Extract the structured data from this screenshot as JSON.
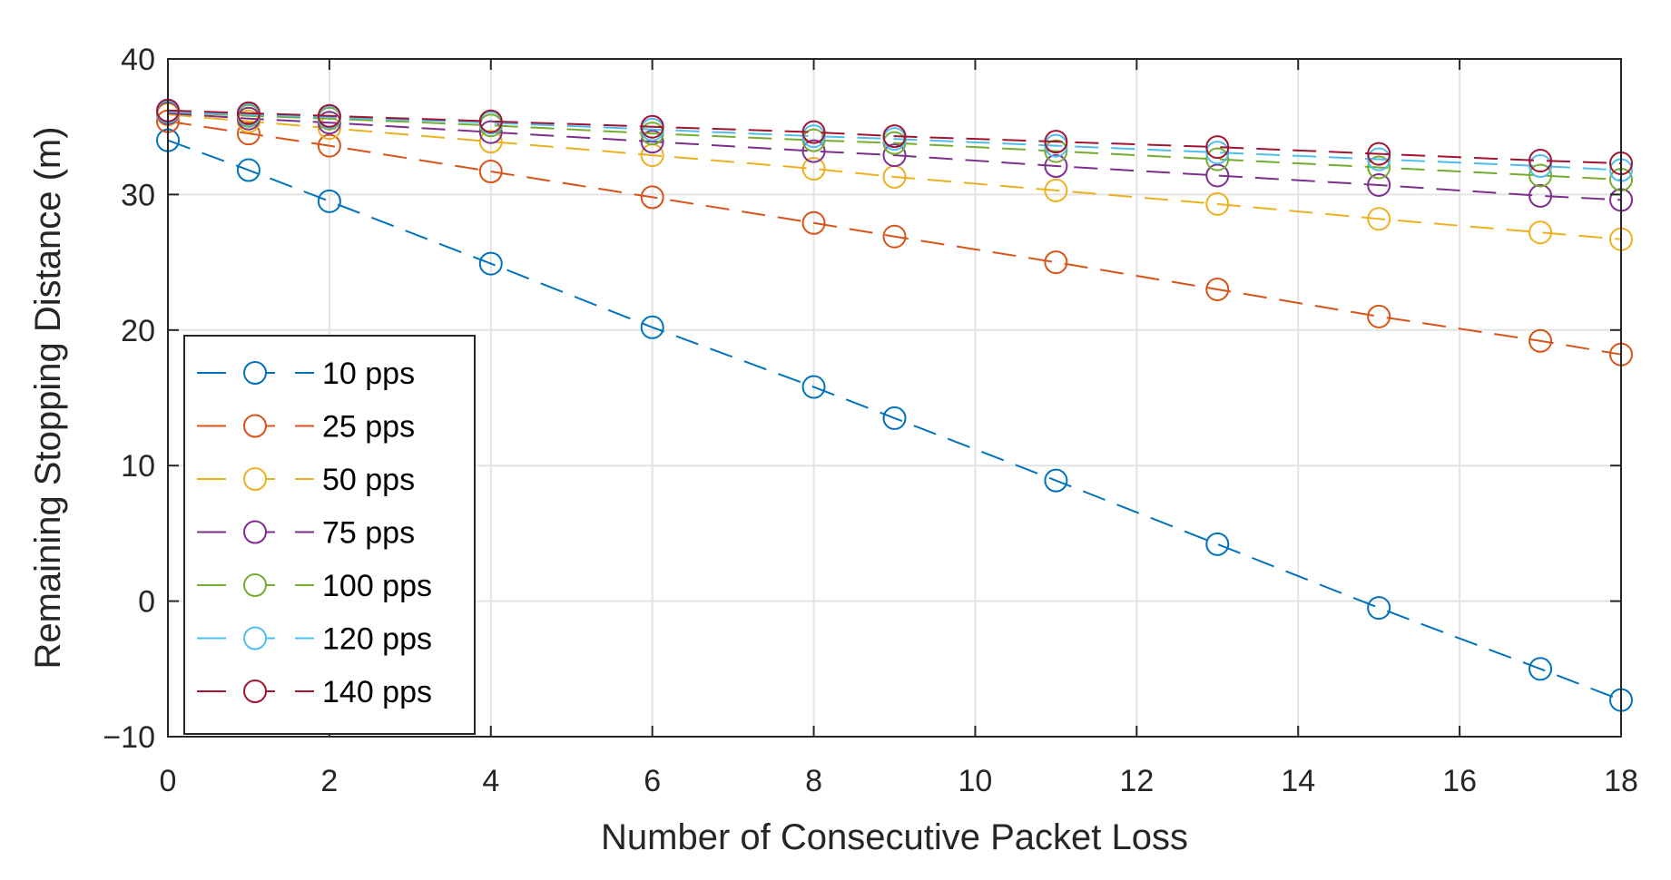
{
  "chart_data": {
    "type": "line",
    "title": "",
    "xlabel": "Number of Consecutive Packet Loss",
    "ylabel": "Remaining Stopping Distance (m)",
    "xlim": [
      0,
      18
    ],
    "ylim": [
      -10,
      40
    ],
    "xticks": [
      "0",
      "2",
      "4",
      "6",
      "8",
      "10",
      "12",
      "14",
      "16",
      "18"
    ],
    "yticks": [
      "−10",
      "0",
      "10",
      "20",
      "30",
      "40"
    ],
    "grid": true,
    "legend_position": "lower-left",
    "x": [
      0,
      1,
      2,
      4,
      6,
      8,
      9,
      11,
      13,
      15,
      17,
      18
    ],
    "series": [
      {
        "name": "10 pps",
        "color": "#0072BD",
        "values": [
          34.0,
          31.8,
          29.5,
          24.9,
          20.2,
          15.8,
          13.5,
          8.9,
          4.2,
          -0.5,
          -5.0,
          -7.3
        ]
      },
      {
        "name": "25 pps",
        "color": "#D95319",
        "values": [
          35.4,
          34.5,
          33.6,
          31.7,
          29.8,
          27.9,
          26.9,
          25.0,
          23.0,
          21.0,
          19.2,
          18.2
        ]
      },
      {
        "name": "50 pps",
        "color": "#EDB120",
        "values": [
          35.9,
          35.4,
          34.9,
          33.9,
          32.9,
          31.9,
          31.3,
          30.3,
          29.3,
          28.2,
          27.2,
          26.7
        ]
      },
      {
        "name": "75 pps",
        "color": "#7E2F8E",
        "values": [
          36.0,
          35.6,
          35.3,
          34.6,
          33.9,
          33.2,
          32.9,
          32.1,
          31.4,
          30.7,
          29.9,
          29.6
        ]
      },
      {
        "name": "100 pps",
        "color": "#77AC30",
        "values": [
          36.1,
          35.8,
          35.6,
          35.1,
          34.5,
          34.0,
          33.8,
          33.2,
          32.6,
          32.0,
          31.4,
          31.1
        ]
      },
      {
        "name": "120 pps",
        "color": "#4DBEEE",
        "values": [
          36.1,
          35.9,
          35.7,
          35.3,
          34.8,
          34.3,
          34.1,
          33.6,
          33.1,
          32.6,
          32.1,
          31.8
        ]
      },
      {
        "name": "140 pps",
        "color": "#A2142F",
        "values": [
          36.2,
          36.0,
          35.8,
          35.4,
          35.0,
          34.6,
          34.3,
          33.9,
          33.5,
          33.0,
          32.5,
          32.3
        ]
      }
    ]
  }
}
